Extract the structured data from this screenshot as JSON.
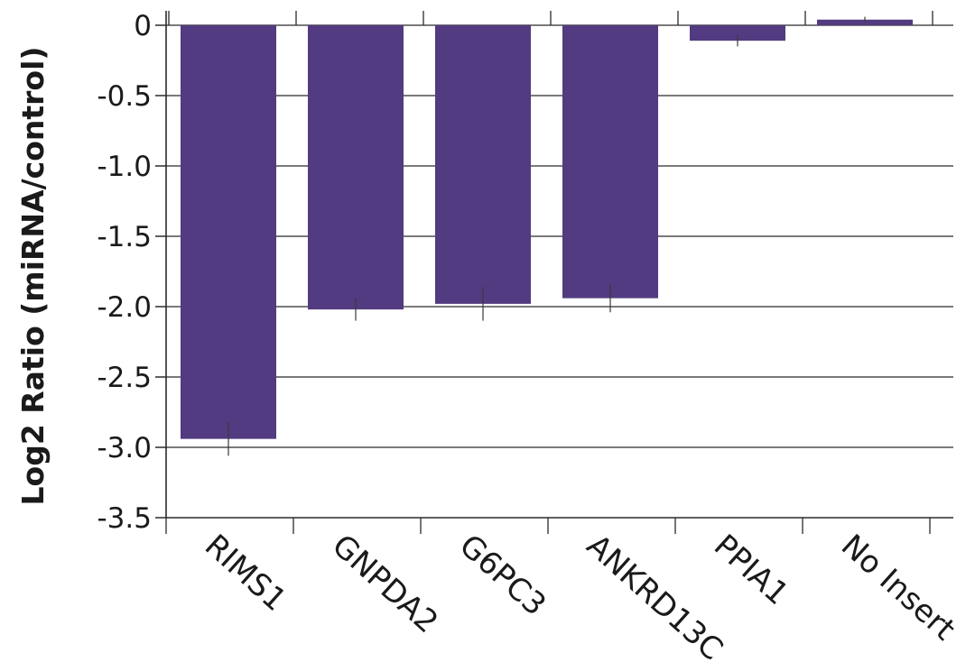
{
  "chart_data": {
    "type": "bar",
    "title": "",
    "xlabel": "",
    "ylabel": "Log2 Ratio (miRNA/control)",
    "categories": [
      "RIMS1",
      "GNPDA2",
      "G6PC3",
      "ANKRD13C",
      "PPIA1",
      "No Insert"
    ],
    "values": [
      -2.94,
      -2.02,
      -1.98,
      -1.94,
      -0.11,
      0.04
    ],
    "error_bars": [
      0.12,
      0.08,
      0.12,
      0.1,
      0.04,
      0.02
    ],
    "ylim": [
      -3.5,
      0
    ],
    "yticks": [
      0,
      -0.5,
      -1.0,
      -1.5,
      -2.0,
      -2.5,
      -3.0,
      -3.5
    ],
    "ytick_labels": [
      "0",
      "-0.5",
      "-1.0",
      "-1.5",
      "-2.0",
      "-2.5",
      "-3.0",
      "-3.5"
    ],
    "grid": "horizontal",
    "legend": "none",
    "colors": {
      "bar": "#523b80",
      "grid": "#2b2b2b",
      "text": "#1a1a1a"
    }
  }
}
